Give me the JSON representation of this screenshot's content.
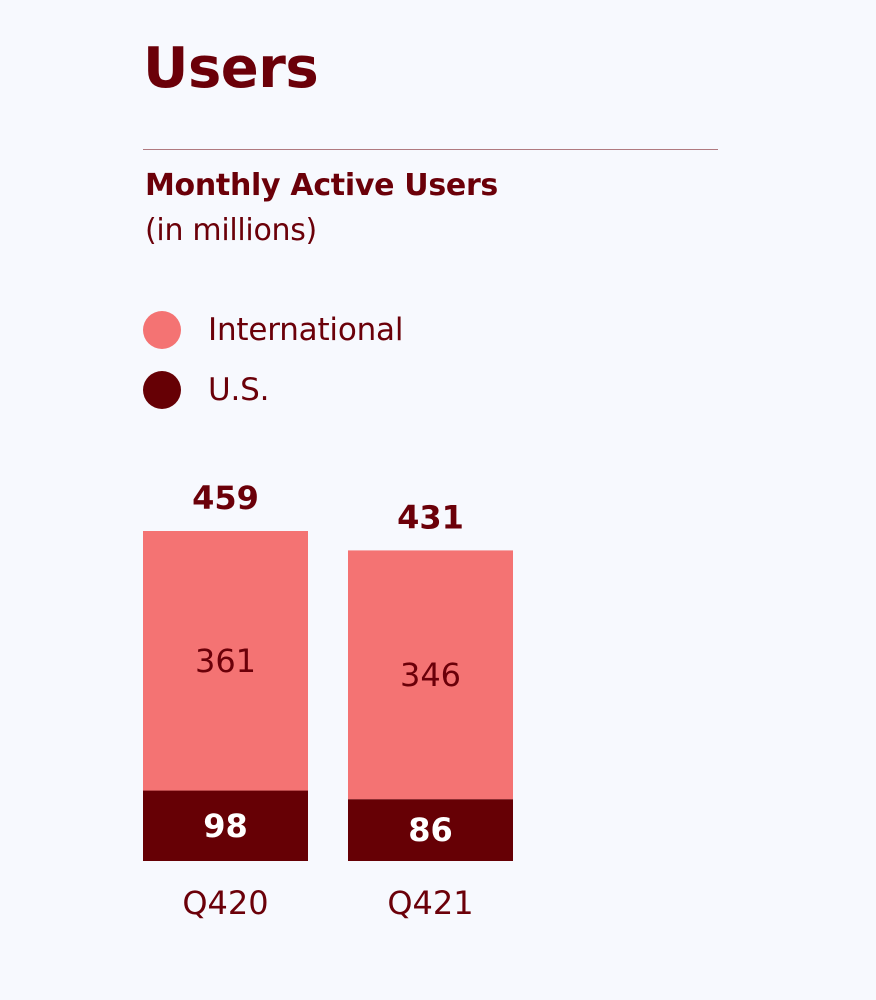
{
  "page": {
    "title": "Users"
  },
  "chart_data": {
    "type": "bar",
    "stacked": true,
    "title": "Monthly Active Users",
    "unit_label": "(in millions)",
    "categories": [
      "Q420",
      "Q421"
    ],
    "series": [
      {
        "name": "U.S.",
        "values": [
          98,
          86
        ],
        "color": "#660005",
        "label_color": "#ffffff"
      },
      {
        "name": "International",
        "values": [
          361,
          346
        ],
        "color": "#f47373",
        "label_color": "#6b0009"
      }
    ],
    "totals": [
      459,
      431
    ],
    "legend_order": [
      "International",
      "U.S."
    ],
    "legend_position": "top-left",
    "grid": false,
    "ylim": [
      0,
      459
    ]
  },
  "colors": {
    "background": "#f7f9fe",
    "text": "#6b0009",
    "rule": "#b07a80"
  }
}
